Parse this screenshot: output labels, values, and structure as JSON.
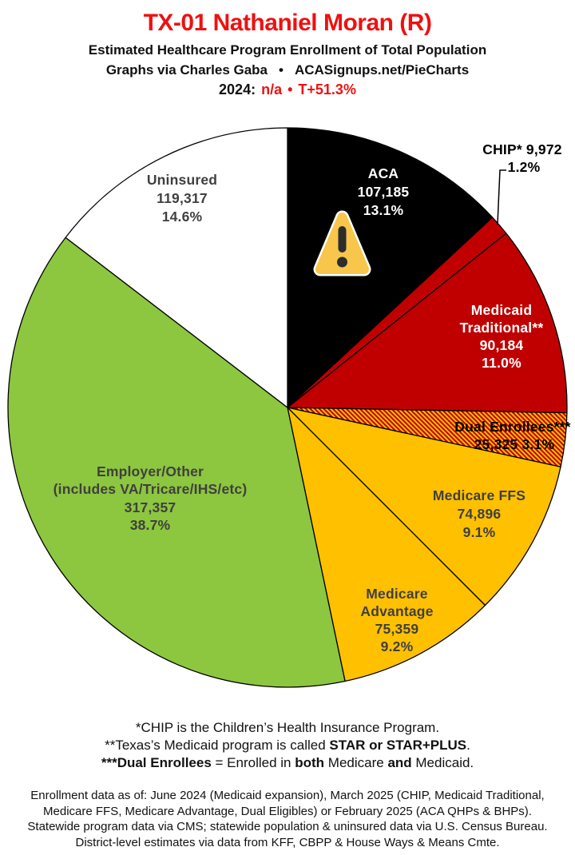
{
  "header": {
    "title": "TX-01 Nathaniel Moran (R)",
    "subtitle": "Estimated Healthcare Program Enrollment of Total Population",
    "credit_prefix": "Graphs via Charles Gaba",
    "credit_bullet": "•",
    "credit_site": "ACASignups.net/PieCharts",
    "year_label": "2024:",
    "year_value": "n/a",
    "year_bullet": "•",
    "margin_value": "T+51.3%",
    "accent_color": "#ee1111"
  },
  "chart_data": {
    "type": "pie",
    "title": "Estimated Healthcare Program Enrollment of Total Population",
    "order": "clockwise from 12 o'clock",
    "outline_color": "#000000",
    "label_text_dark": "#3f3f3f",
    "label_text_light": "#ffffff",
    "hatch": {
      "stripe_gold": "#FFC000",
      "stripe_red": "#C00000"
    },
    "overlay_icon": "warning-triangle",
    "overlay_icon_colors": {
      "fill": "#F7C64A",
      "glyph": "#2D2D2D",
      "rim": "#FFFFFF"
    },
    "slices": [
      {
        "id": "aca",
        "name": "ACA",
        "label_lines": [
          "ACA"
        ],
        "value": 107185,
        "value_display": "107,185",
        "pct": 13.1,
        "pct_display": "13.1%",
        "color": "#000000"
      },
      {
        "id": "chip",
        "name": "CHIP",
        "label_lines": [
          "CHIP* 9,972",
          "1.2%"
        ],
        "value": 9972,
        "value_display": "9,972",
        "pct": 1.2,
        "pct_display": "1.2%",
        "color": "#C00000",
        "label_outside": true
      },
      {
        "id": "medicaid-traditional",
        "name": "Medicaid Traditional",
        "label_lines": [
          "Medicaid",
          "Traditional**"
        ],
        "value": 90184,
        "value_display": "90,184",
        "pct": 11.0,
        "pct_display": "11.0%",
        "color": "#C00000"
      },
      {
        "id": "dual-enrollees",
        "name": "Dual Enrollees",
        "label_lines": [
          "Dual Enrollees***",
          "25,325 3.1%"
        ],
        "value": 25325,
        "value_display": "25,325",
        "pct": 3.1,
        "pct_display": "3.1%",
        "fill": "hatch"
      },
      {
        "id": "medicare-ffs",
        "name": "Medicare FFS",
        "label_lines": [
          "Medicare FFS"
        ],
        "value": 74896,
        "value_display": "74,896",
        "pct": 9.1,
        "pct_display": "9.1%",
        "color": "#FFC000"
      },
      {
        "id": "medicare-advantage",
        "name": "Medicare Advantage",
        "label_lines": [
          "Medicare",
          "Advantage"
        ],
        "value": 75359,
        "value_display": "75,359",
        "pct": 9.2,
        "pct_display": "9.2%",
        "color": "#FFC000"
      },
      {
        "id": "employer-other",
        "name": "Employer/Other",
        "label_lines": [
          "Employer/Other",
          "(includes VA/Tricare/IHS/etc)"
        ],
        "value": 317357,
        "value_display": "317,357",
        "pct": 38.7,
        "pct_display": "38.7%",
        "color": "#8DC63F"
      },
      {
        "id": "uninsured",
        "name": "Uninsured",
        "label_lines": [
          "Uninsured"
        ],
        "value": 119317,
        "value_display": "119,317",
        "pct": 14.6,
        "pct_display": "14.6%",
        "color": "#FFFFFF"
      }
    ]
  },
  "footnotes": {
    "line1": "*CHIP is the Children’s Health Insurance Program.",
    "line2_prefix": "**Texas’s Medicaid program is called ",
    "line2_bold": "STAR or STAR+PLUS",
    "line2_suffix": ".",
    "line3_bold1": "***Dual Enrollees",
    "line3_mid1": " = Enrolled in ",
    "line3_bold2": "both",
    "line3_mid2": " Medicare ",
    "line3_bold3": "and",
    "line3_suffix": " Medicaid."
  },
  "sources": {
    "lines": [
      "Enrollment data as of: June 2024 (Medicaid expansion), March 2025 (CHIP, Medicaid Traditional,",
      "Medicare FFS, Medicare Advantage, Dual Eligibles) or February 2025 (ACA QHPs & BHPs).",
      "Statewide program data via CMS; statewide population & uninsured data via U.S. Census Bureau.",
      "District-level estimates via data from KFF, CBPP & House Ways & Means Cmte."
    ]
  }
}
